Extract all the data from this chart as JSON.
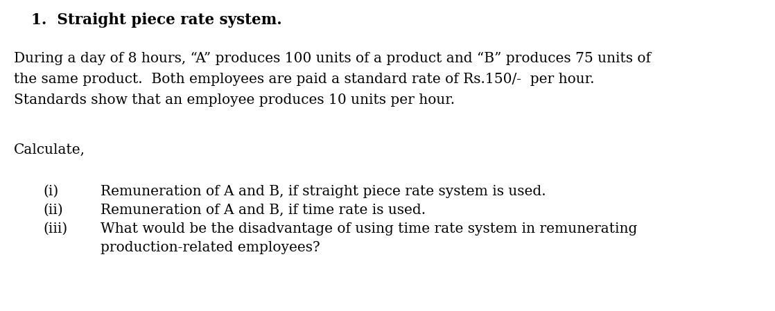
{
  "background_color": "#ffffff",
  "title": "1.  Straight piece rate system.",
  "title_fontsize": 15.5,
  "paragraph_lines": [
    "During a day of 8 hours, “A” produces 100 units of a product and “B” produces 75 units of",
    "the same product.  Both employees are paid a standard rate of Rs.150/-  per hour.",
    "Standards show that an employee produces 10 units per hour."
  ],
  "para_fontsize": 14.5,
  "calculate_label": "Calculate,",
  "calc_fontsize": 14.5,
  "items": [
    {
      "label": "(i)",
      "text": "Remuneration of A and B, if straight piece rate system is used."
    },
    {
      "label": "(ii)",
      "text": "Remuneration of A and B, if time rate is used."
    },
    {
      "label": "(iii)",
      "text_lines": [
        "What would be the disadvantage of using time rate system in remunerating",
        "production-related employees?"
      ]
    }
  ],
  "item_fontsize": 14.5,
  "text_color": "#000000",
  "figwidth": 11.18,
  "figheight": 4.49,
  "dpi": 100
}
